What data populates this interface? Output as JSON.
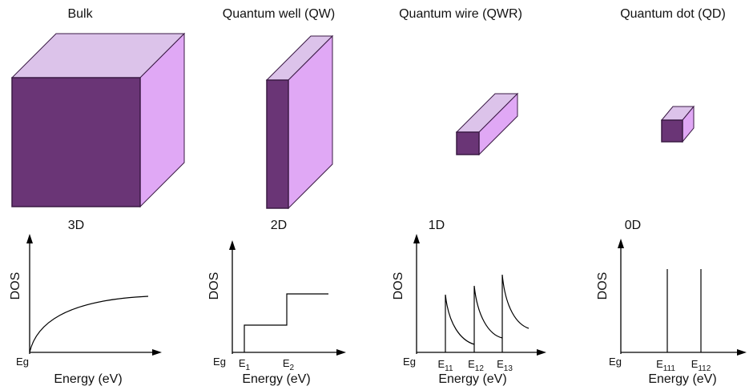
{
  "panels": [
    {
      "title": "Bulk",
      "dimension": "3D",
      "y_label": "DOS",
      "x_label": "Energy (eV)",
      "origin_label": "Eg",
      "energy_levels": []
    },
    {
      "title": "Quantum well (QW)",
      "dimension": "2D",
      "y_label": "DOS",
      "x_label": "Energy (eV)",
      "origin_label": "Eg",
      "energy_levels": [
        {
          "base": "E",
          "sub": "1"
        },
        {
          "base": "E",
          "sub": "2"
        }
      ]
    },
    {
      "title": "Quantum wire (QWR)",
      "dimension": "1D",
      "y_label": "DOS",
      "x_label": "Energy (eV)",
      "origin_label": "Eg",
      "energy_levels": [
        {
          "base": "E",
          "sub": "11"
        },
        {
          "base": "E",
          "sub": "12"
        },
        {
          "base": "E",
          "sub": "13"
        }
      ]
    },
    {
      "title": "Quantum dot (QD)",
      "dimension": "0D",
      "y_label": "DOS",
      "x_label": "Energy (eV)",
      "origin_label": "Eg",
      "energy_levels": [
        {
          "base": "E",
          "sub": "111"
        },
        {
          "base": "E",
          "sub": "112"
        }
      ]
    }
  ]
}
